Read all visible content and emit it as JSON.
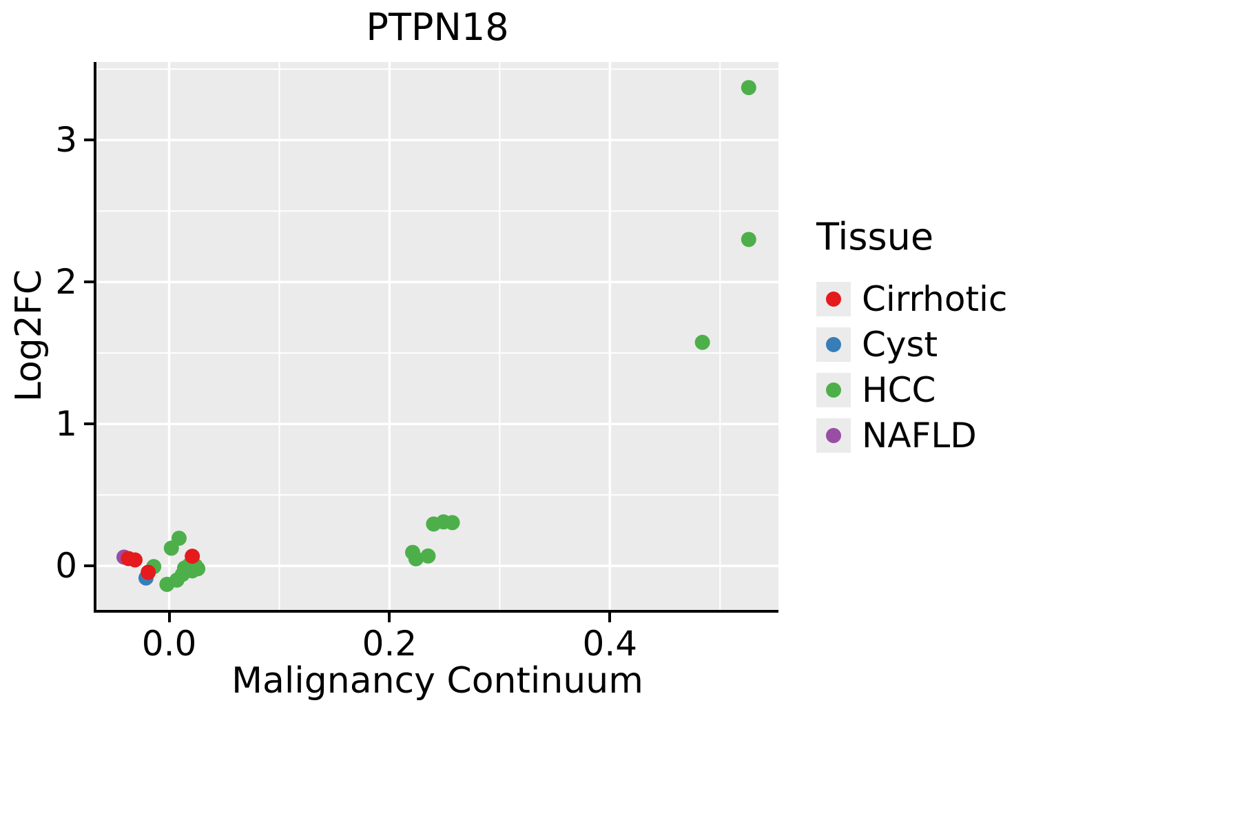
{
  "chart_data": {
    "type": "scatter",
    "title": "PTPN18",
    "xlabel": "Malignancy Continuum",
    "ylabel": "Log2FC",
    "legend_title": "Tissue",
    "legend_position": "right",
    "grid": true,
    "panel_bg": "#EBEBEB",
    "grid_color": "#FFFFFF",
    "legend_key_bg": "#EBEBEB",
    "point_radius": 11,
    "xlim": [
      -0.066,
      0.553
    ],
    "ylim": [
      -0.31,
      3.55
    ],
    "xticks": [
      0.0,
      0.2,
      0.4
    ],
    "xtick_labels": [
      "0.0",
      "0.2",
      "0.4"
    ],
    "x_minor": [
      0.1,
      0.3,
      0.5
    ],
    "yticks": [
      0,
      1,
      2,
      3
    ],
    "ytick_labels": [
      "0",
      "1",
      "2",
      "3"
    ],
    "y_minor": [
      0.5,
      1.5,
      2.5,
      3.5
    ],
    "series": [
      {
        "name": "Cirrhotic",
        "color": "#E41A1C",
        "points": [
          [
            -0.037,
            0.052
          ],
          [
            -0.031,
            0.042
          ],
          [
            -0.019,
            -0.045
          ],
          [
            0.021,
            0.068
          ]
        ]
      },
      {
        "name": "Cyst",
        "color": "#377EB8",
        "points": [
          [
            -0.021,
            -0.085
          ]
        ]
      },
      {
        "name": "HCC",
        "color": "#4DAF4A",
        "points": [
          [
            -0.014,
            -0.005
          ],
          [
            0.002,
            0.125
          ],
          [
            0.009,
            0.195
          ],
          [
            -0.002,
            -0.13
          ],
          [
            0.007,
            -0.1
          ],
          [
            0.012,
            -0.06
          ],
          [
            0.014,
            -0.015
          ],
          [
            0.018,
            0.005
          ],
          [
            0.021,
            -0.035
          ],
          [
            0.024,
            0.0
          ],
          [
            0.026,
            -0.02
          ],
          [
            0.221,
            0.095
          ],
          [
            0.224,
            0.05
          ],
          [
            0.235,
            0.07
          ],
          [
            0.24,
            0.295
          ],
          [
            0.249,
            0.31
          ],
          [
            0.257,
            0.305
          ],
          [
            0.484,
            1.575
          ],
          [
            0.526,
            2.3
          ],
          [
            0.526,
            3.37
          ]
        ]
      },
      {
        "name": "NAFLD",
        "color": "#984EA3",
        "points": [
          [
            -0.041,
            0.062
          ]
        ]
      }
    ]
  }
}
